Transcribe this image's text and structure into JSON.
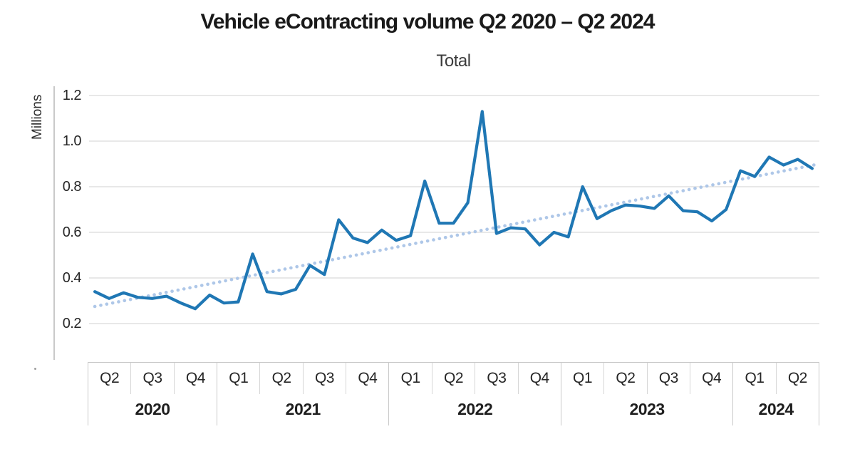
{
  "header": {
    "title": "Vehicle eContracting volume Q2 2020 – Q2 2024",
    "subtitle": "Total"
  },
  "colors": {
    "series_line": "#1f77b4",
    "trend_line": "#aec7e8",
    "gridline": "#d9d9d9",
    "axis_border": "#c9c9c9",
    "text": "#262626",
    "background": "#ffffff"
  },
  "chart_data": {
    "type": "line",
    "title": "Vehicle eContracting volume Q2 2020 – Q2 2024",
    "subtitle": "Total",
    "ylabel": "Millions",
    "xlabel": "",
    "ylim": [
      0.2,
      1.2
    ],
    "grid": true,
    "legend": "none",
    "y_ticks": [
      "1.2",
      "1.0",
      "0.8",
      "0.6",
      "0.4",
      "0.2"
    ],
    "x_unit": "month",
    "x_start": "Apr 2020",
    "x_end": "Jun 2024",
    "series": [
      {
        "name": "Total",
        "style": "solid",
        "color": "#1f77b4",
        "values": [
          0.34,
          0.31,
          0.335,
          0.315,
          0.31,
          0.32,
          0.29,
          0.265,
          0.325,
          0.29,
          0.295,
          0.505,
          0.34,
          0.33,
          0.35,
          0.455,
          0.415,
          0.655,
          0.575,
          0.555,
          0.61,
          0.565,
          0.585,
          0.825,
          0.64,
          0.64,
          0.73,
          1.13,
          0.595,
          0.62,
          0.615,
          0.545,
          0.6,
          0.58,
          0.8,
          0.66,
          0.695,
          0.72,
          0.715,
          0.705,
          0.76,
          0.695,
          0.69,
          0.65,
          0.7,
          0.87,
          0.845,
          0.93,
          0.895,
          0.92,
          0.88
        ]
      }
    ],
    "trend": {
      "name": "Linear trend",
      "style": "dotted",
      "color": "#aec7e8",
      "start_value": 0.275,
      "end_value": 0.9
    },
    "x_axis": {
      "years": [
        {
          "label": "2020",
          "quarters": [
            "Q2",
            "Q3",
            "Q4"
          ]
        },
        {
          "label": "2021",
          "quarters": [
            "Q1",
            "Q2",
            "Q3",
            "Q4"
          ]
        },
        {
          "label": "2022",
          "quarters": [
            "Q1",
            "Q2",
            "Q3",
            "Q4"
          ]
        },
        {
          "label": "2023",
          "quarters": [
            "Q1",
            "Q2",
            "Q3",
            "Q4"
          ]
        },
        {
          "label": "2024",
          "quarters": [
            "Q1",
            "Q2"
          ]
        }
      ]
    }
  }
}
